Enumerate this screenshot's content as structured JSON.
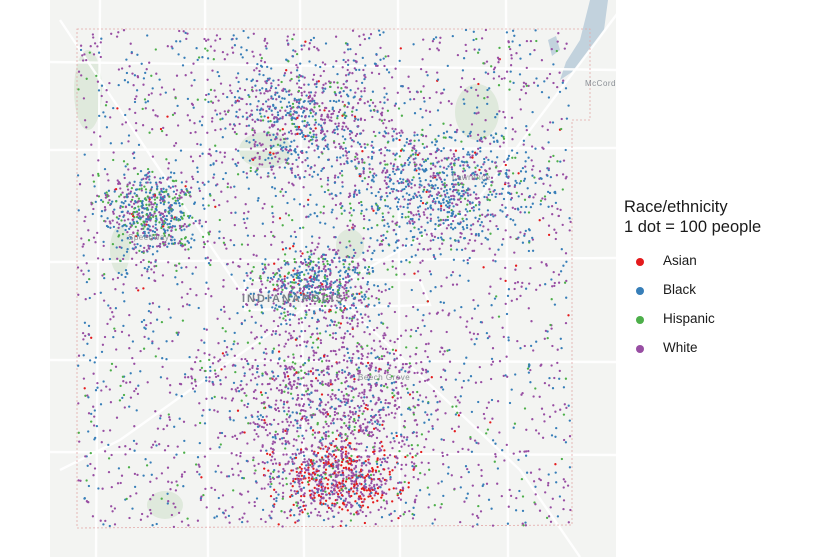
{
  "legend": {
    "title_line1": "Race/ethnicity",
    "title_line2": "1 dot = 100 people",
    "items": [
      {
        "label": "Asian",
        "color": "#e41a1c"
      },
      {
        "label": "Black",
        "color": "#377eb8"
      },
      {
        "label": "Hispanic",
        "color": "#4daf4a"
      },
      {
        "label": "White",
        "color": "#984ea3"
      }
    ]
  },
  "basemap": {
    "background_color": "#f3f4f2",
    "road_color": "#ffffff",
    "green_color": "#d9e6d6",
    "water_color": "#b8cbd9",
    "labels": [
      "INDIANAPOLIS",
      "Lawrence",
      "Speedway",
      "Beech Grove",
      "McCord"
    ]
  },
  "dots": {
    "unit": "1 dot = 100 people",
    "groups": [
      "Asian",
      "Black",
      "Hispanic",
      "White"
    ]
  }
}
